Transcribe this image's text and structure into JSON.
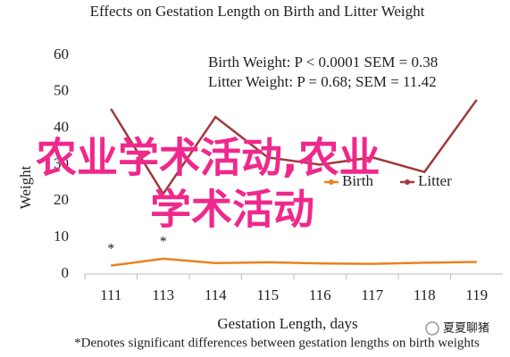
{
  "chart_data": {
    "type": "line",
    "title": "Effects on Gestation Length on Birth and Litter Weight",
    "x_label": "Gestation Length, days",
    "y_label": "Weight",
    "footnote": "*Denotes significant differences between gestation lengths on birth weights",
    "annotations": [
      "Birth Weight: P < 0.0001 SEM = 0.38",
      "Litter Weight: P = 0.68; SEM = 11.42"
    ],
    "significance": [
      {
        "text": "*",
        "category": "111"
      },
      {
        "text": "*",
        "category": "113"
      }
    ],
    "categories": [
      "111",
      "113",
      "114",
      "115",
      "116",
      "117",
      "118",
      "119"
    ],
    "series": [
      {
        "name": "Birth",
        "color": "#e8821e",
        "values": [
          2.3,
          4.2,
          3.0,
          3.2,
          2.9,
          2.8,
          3.1,
          3.3
        ]
      },
      {
        "name": "Litter",
        "color": "#a0393c",
        "values": [
          45.3,
          22,
          43.1,
          32,
          30,
          32,
          28,
          47.8
        ]
      }
    ],
    "ylim": [
      0,
      60
    ],
    "yticks": [
      0,
      10,
      20,
      30,
      40,
      50,
      60
    ],
    "grid": false,
    "overlay_text": [
      "农业学术活动,农业",
      "学术活动"
    ],
    "watermark": "夏夏聊猪"
  }
}
